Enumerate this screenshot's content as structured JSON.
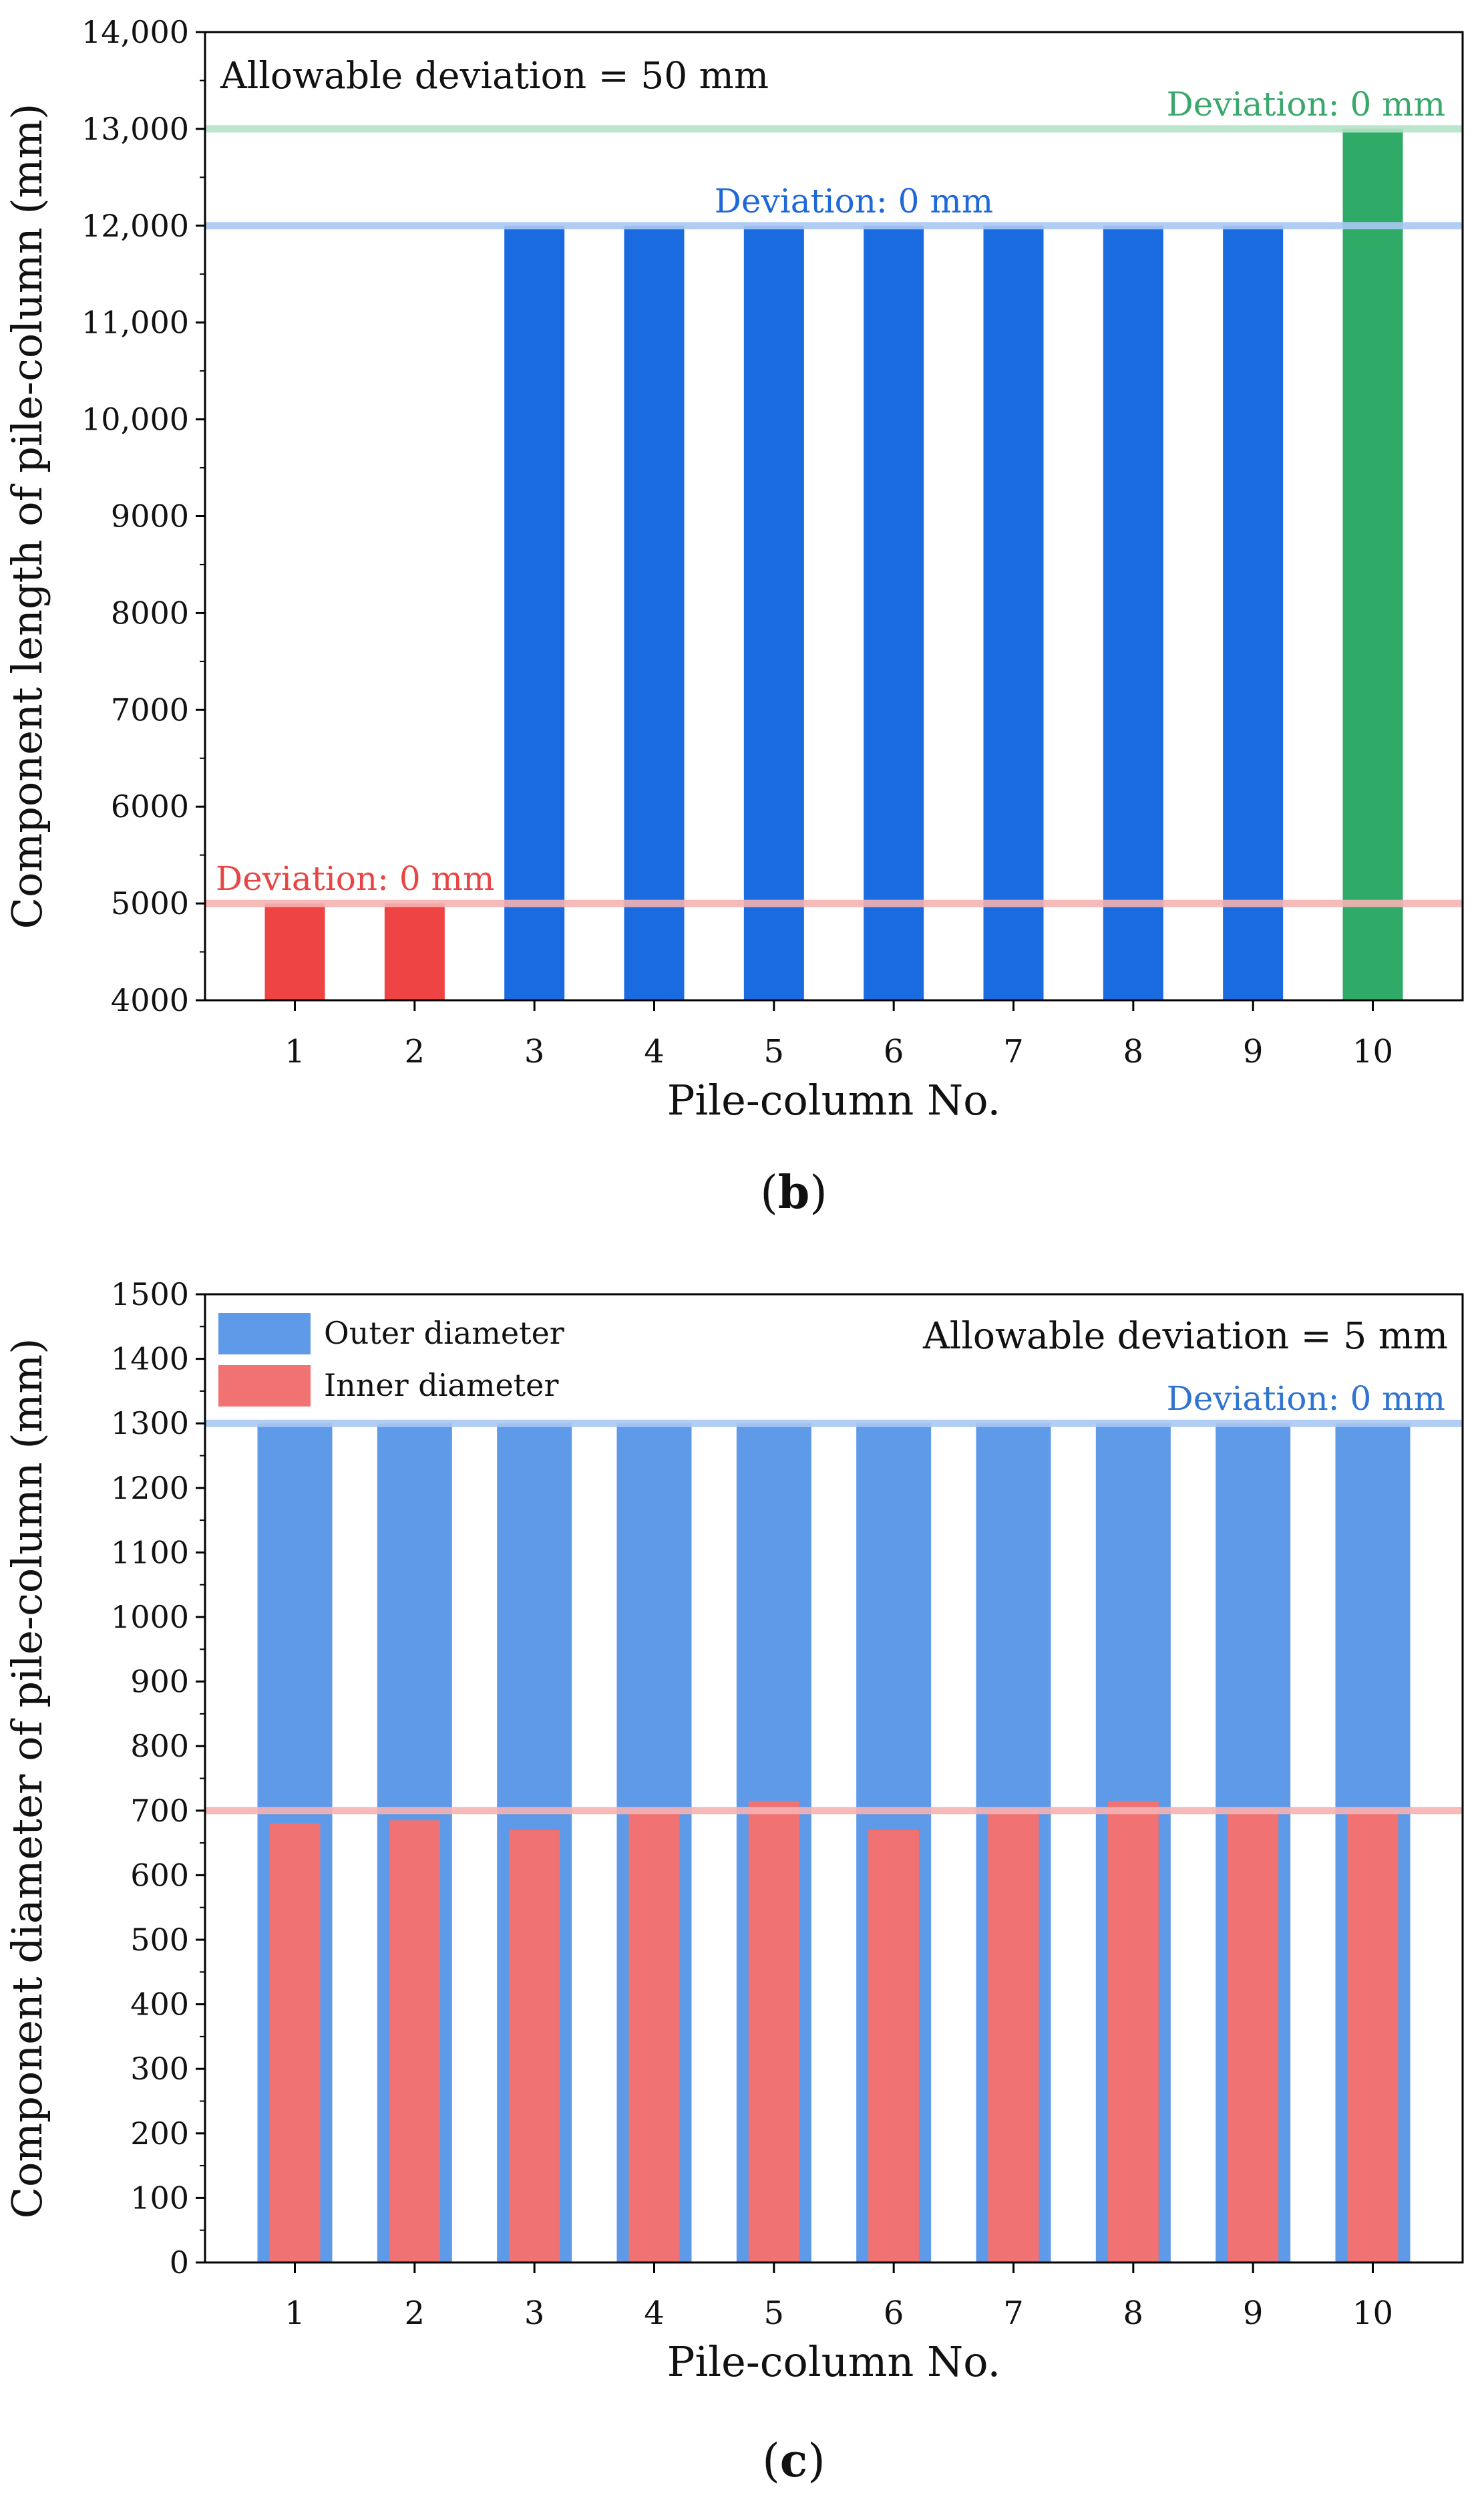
{
  "chart_data": [
    {
      "type": "bar",
      "panel_label": "b",
      "categories": [
        "1",
        "2",
        "3",
        "4",
        "5",
        "6",
        "7",
        "8",
        "9",
        "10"
      ],
      "values": [
        5000,
        5000,
        12000,
        12000,
        12000,
        12000,
        12000,
        12000,
        12000,
        13000
      ],
      "bar_colors": [
        "#ef4444",
        "#ef4444",
        "#1a6be0",
        "#1a6be0",
        "#1a6be0",
        "#1a6be0",
        "#1a6be0",
        "#1a6be0",
        "#1a6be0",
        "#2faa67"
      ],
      "xlabel": "Pile-column No.",
      "ylabel": "Component length of pile-column (mm)",
      "ylim": [
        4000,
        14000
      ],
      "yticks": [
        4000,
        5000,
        6000,
        7000,
        8000,
        9000,
        10000,
        11000,
        12000,
        13000,
        14000
      ],
      "ytick_labels": [
        "4000",
        "5000",
        "6000",
        "7000",
        "8000",
        "9000",
        "10,000",
        "11,000",
        "12,000",
        "13,000",
        "14,000"
      ],
      "annotation": "Allowable deviation = 50 mm",
      "reference_lines": [
        {
          "value": 5000,
          "color": "#f6b3b3",
          "label": "Deviation: 0 mm",
          "label_color": "#e84545",
          "label_pos": "left"
        },
        {
          "value": 12000,
          "color": "#aac8f2",
          "label": "Deviation: 0 mm",
          "label_color": "#1f68d8",
          "label_pos": "center"
        },
        {
          "value": 13000,
          "color": "#b4e2c6",
          "label": "Deviation: 0 mm",
          "label_color": "#3aa86b",
          "label_pos": "right"
        }
      ]
    },
    {
      "type": "bar",
      "panel_label": "c",
      "categories": [
        "1",
        "2",
        "3",
        "4",
        "5",
        "6",
        "7",
        "8",
        "9",
        "10"
      ],
      "series": [
        {
          "name": "Outer diameter",
          "color": "#5e9ae8",
          "values": [
            1300,
            1300,
            1300,
            1300,
            1300,
            1300,
            1300,
            1300,
            1300,
            1300
          ]
        },
        {
          "name": "Inner diameter",
          "color": "#f07272",
          "values": [
            680,
            685,
            670,
            700,
            715,
            670,
            700,
            715,
            700,
            700
          ]
        }
      ],
      "xlabel": "Pile-column No.",
      "ylabel": "Component diameter of pile-column (mm)",
      "ylim": [
        0,
        1500
      ],
      "yticks": [
        0,
        100,
        200,
        300,
        400,
        500,
        600,
        700,
        800,
        900,
        1000,
        1100,
        1200,
        1300,
        1400,
        1500
      ],
      "ytick_labels": [
        "0",
        "100",
        "200",
        "300",
        "400",
        "500",
        "600",
        "700",
        "800",
        "900",
        "1000",
        "1100",
        "1200",
        "1300",
        "1400",
        "1500"
      ],
      "annotation": "Allowable deviation = 5 mm",
      "legend_position": "top-left",
      "reference_lines": [
        {
          "value": 1300,
          "color": "#aac8f2",
          "label": "Deviation: 0 mm",
          "label_color": "#2f74d0",
          "label_pos": "right"
        },
        {
          "value": 700,
          "color": "#f6b3b3",
          "label": "",
          "label_color": "#e84545",
          "label_pos": "none"
        }
      ]
    }
  ]
}
